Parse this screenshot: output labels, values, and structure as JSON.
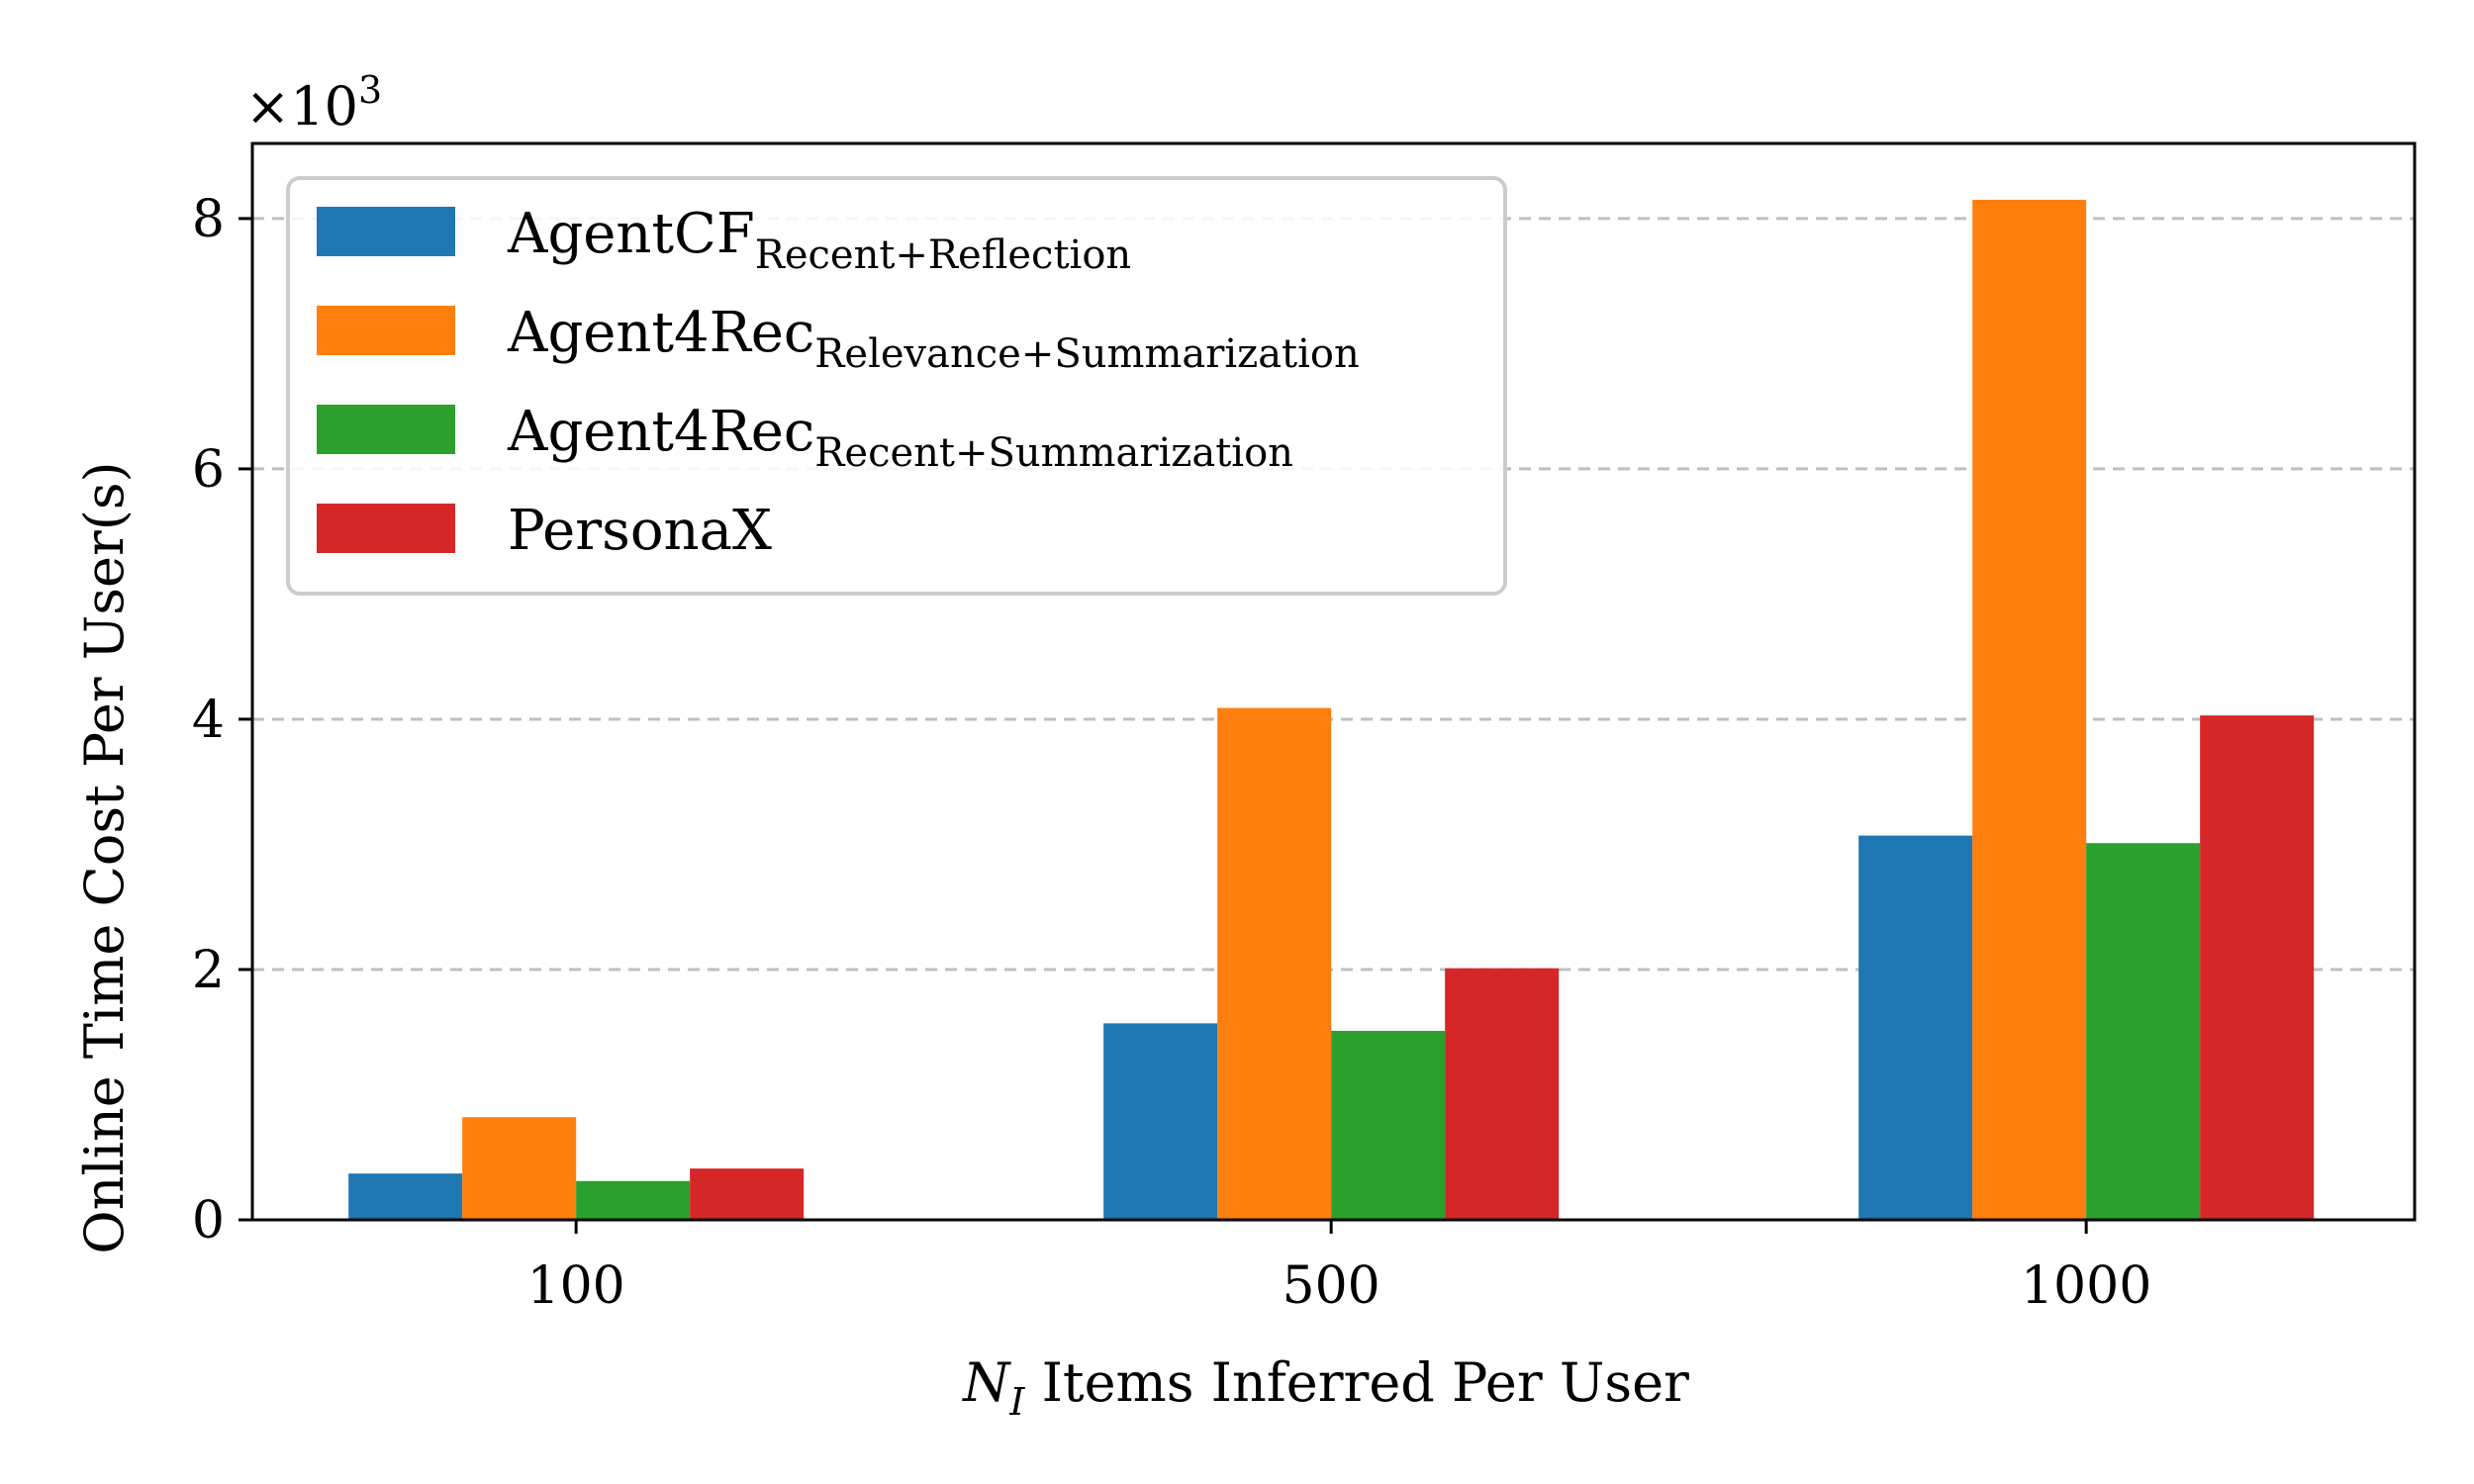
{
  "chart_data": {
    "type": "bar",
    "categories": [
      "100",
      "500",
      "1000"
    ],
    "series": [
      {
        "name": "AgentCF",
        "name_sub": "Recent+Reflection",
        "color": "#1f77b4",
        "values": [
          370,
          1570,
          3070
        ]
      },
      {
        "name": "Agent4Rec",
        "name_sub": "Relevance+Summarization",
        "color": "#ff7f0e",
        "values": [
          820,
          4090,
          8150
        ]
      },
      {
        "name": "Agent4Rec",
        "name_sub": "Recent+Summarization",
        "color": "#2ca02c",
        "values": [
          310,
          1510,
          3010
        ]
      },
      {
        "name": "PersonaX",
        "name_sub": "",
        "color": "#d62728",
        "values": [
          410,
          2010,
          4030
        ]
      }
    ],
    "ylim": [
      0,
      8600
    ],
    "yticks": [
      "0",
      "2",
      "4",
      "6",
      "8"
    ],
    "ytick_values": [
      0,
      2000,
      4000,
      6000,
      8000
    ],
    "y_multiplier": {
      "base": "×10",
      "exp": "3"
    },
    "ylabel": "Online Time Cost Per User(s)",
    "xlabel": {
      "var": "N",
      "sub": "I",
      "text": " Items Inferred Per User"
    },
    "grid": "y dashed",
    "legend_position": "top-left"
  }
}
